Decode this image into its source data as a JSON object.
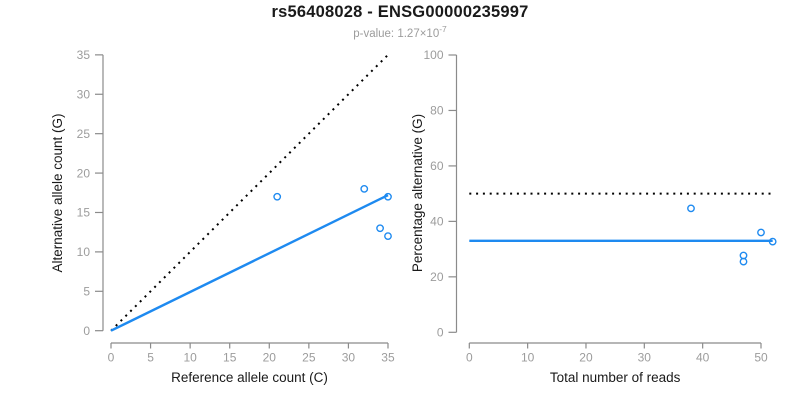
{
  "header": {
    "title": "rs56408028 - ENSG00000235997",
    "p_value_text": "p-value: 1.27×10",
    "p_value_exponent": "-7"
  },
  "colors": {
    "accent_blue": "#1E8AF0",
    "dotted_black": "#000000",
    "axis_line": "#8b8b8b",
    "tick_label": "#9c9c9c",
    "text": "#1a1a1a"
  },
  "chart_data": [
    {
      "type": "scatter",
      "name": "allele-counts-scatter",
      "xlabel": "Reference allele count (C)",
      "ylabel": "Alternative allele count (G)",
      "xlim": [
        0,
        35
      ],
      "ylim": [
        0,
        35
      ],
      "xticks": [
        0,
        5,
        10,
        15,
        20,
        25,
        30,
        35
      ],
      "yticks": [
        0,
        5,
        10,
        15,
        20,
        25,
        30,
        35
      ],
      "grid": false,
      "legend": false,
      "points": [
        [
          21,
          17
        ],
        [
          32,
          18
        ],
        [
          34,
          13
        ],
        [
          35,
          12
        ],
        [
          35,
          17
        ]
      ],
      "lines": [
        {
          "name": "identity-line",
          "style": "dotted",
          "color": "#000000",
          "x1": 0,
          "y1": 0,
          "x2": 35,
          "y2": 35
        },
        {
          "name": "fit-line",
          "style": "solid",
          "color": "#1E8AF0",
          "x1": 0,
          "y1": 0,
          "x2": 35,
          "y2": 17.2
        }
      ]
    },
    {
      "type": "scatter",
      "name": "percentage-vs-reads-scatter",
      "xlabel": "Total number of reads",
      "ylabel": "Percentage alternative (G)",
      "xlim": [
        0,
        52
      ],
      "ylim": [
        0,
        100
      ],
      "xticks": [
        0,
        10,
        20,
        30,
        40,
        50
      ],
      "yticks": [
        0,
        20,
        40,
        60,
        80,
        100
      ],
      "grid": false,
      "legend": false,
      "points": [
        [
          38,
          44.7
        ],
        [
          47,
          25.5
        ],
        [
          47,
          27.7
        ],
        [
          50,
          36
        ],
        [
          52,
          32.7
        ]
      ],
      "lines": [
        {
          "name": "reference-line-50pct",
          "style": "dotted",
          "color": "#000000",
          "x1": 0,
          "y1": 50,
          "x2": 52,
          "y2": 50
        },
        {
          "name": "fit-line",
          "style": "solid",
          "color": "#1E8AF0",
          "x1": 0,
          "y1": 33,
          "x2": 52,
          "y2": 33
        }
      ]
    }
  ]
}
